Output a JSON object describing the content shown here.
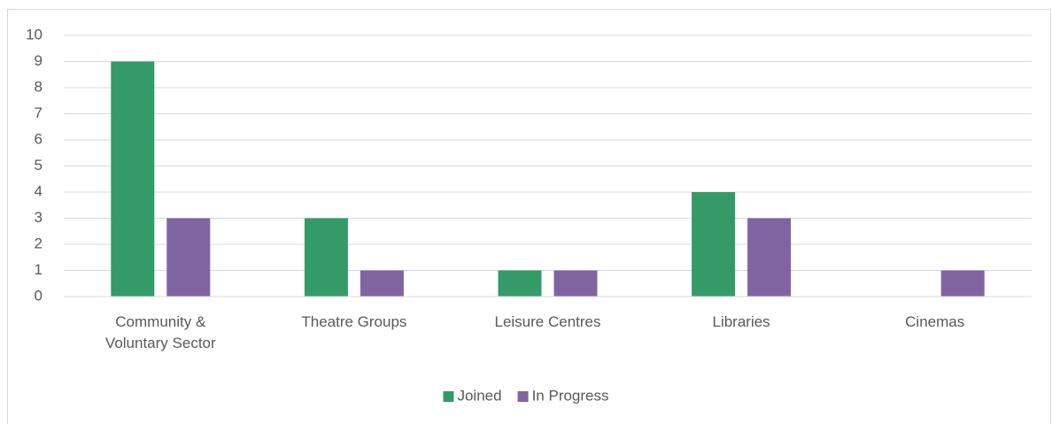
{
  "chart_data": {
    "type": "bar",
    "categories": [
      "Community & Voluntary Sector",
      "Theatre Groups",
      "Leisure Centres",
      "Libraries",
      "Cinemas"
    ],
    "series": [
      {
        "name": "Joined",
        "color": "#349b68",
        "values": [
          9,
          3,
          1,
          4,
          0
        ]
      },
      {
        "name": "In Progress",
        "color": "#8064a2",
        "values": [
          3,
          1,
          1,
          3,
          1
        ]
      }
    ],
    "ylim": [
      0,
      10
    ],
    "yticks": [
      0,
      1,
      2,
      3,
      4,
      5,
      6,
      7,
      8,
      9,
      10
    ],
    "grid": true,
    "legend": "bottom"
  }
}
